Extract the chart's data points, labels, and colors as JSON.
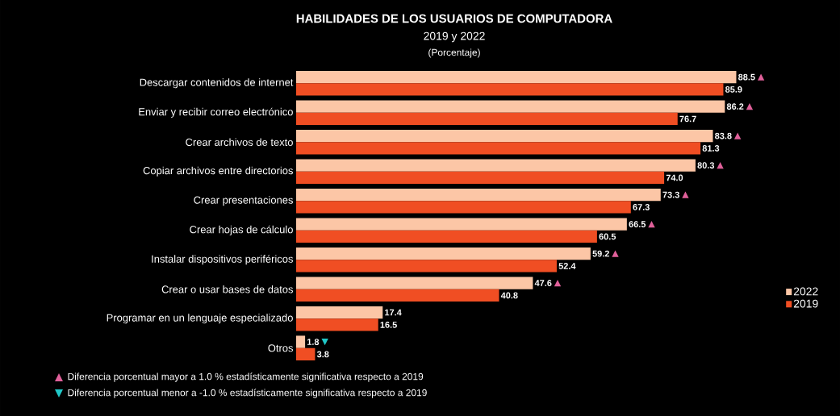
{
  "chart_data": {
    "type": "bar",
    "orientation": "horizontal",
    "title": "HABILIDADES DE LOS USUARIOS DE COMPUTADORA",
    "subtitle": "2019 y 2022",
    "categories": [
      "Descargar contenidos de internet",
      "Enviar y recibir correo electrónico",
      "Crear archivos de texto",
      "Copiar archivos entre directorios",
      "Crear presentaciones",
      "Crear hojas de cálculo",
      "Instalar dispositivos periféricos",
      "Crear o usar bases de datos",
      "Programar en un lenguaje especializado",
      "Otros"
    ],
    "series": [
      {
        "name": "2022",
        "color": "#fcc6a6",
        "values": [
          88.5,
          86.2,
          83.8,
          80.3,
          73.3,
          66.5,
          59.2,
          47.6,
          17.4,
          1.8
        ],
        "value_labels": [
          "88.5",
          "86.2",
          "83.8",
          "80.3",
          "73.3",
          "66.5",
          "59.2",
          "47.6",
          "17.4",
          "1.8"
        ]
      },
      {
        "name": "2019",
        "color": "#f04e23",
        "values": [
          85.9,
          76.7,
          81.3,
          74.0,
          67.3,
          60.5,
          52.4,
          40.8,
          16.5,
          3.8
        ],
        "value_labels": [
          "85.9",
          "76.7",
          "81.3",
          "74.0",
          "67.3",
          "60.5",
          "52.4",
          "40.8",
          "16.5",
          "3.8"
        ]
      }
    ],
    "annotations": [
      "(Porcentaje)",
      "Diferencia porcentual mayor a 1.0 % estadísticamente significativa respecto a 2019",
      "Diferencia porcentual menor a -1.0 % estadísticamente significativa respecto a 2019",
      {
        "text": "▲",
        "x": 88.5,
        "y": "Descargar contenidos de internet"
      },
      {
        "text": "▲",
        "x": 86.2,
        "y": "Enviar y recibir correo electrónico"
      },
      {
        "text": "▲",
        "x": 83.8,
        "y": "Crear archivos de texto"
      },
      {
        "text": "▲",
        "x": 80.3,
        "y": "Copiar archivos entre directorios"
      },
      {
        "text": "▲",
        "x": 73.3,
        "y": "Crear presentaciones"
      },
      {
        "text": "▲",
        "x": 66.5,
        "y": "Crear hojas de cálculo"
      },
      {
        "text": "▲",
        "x": 59.2,
        "y": "Instalar dispositivos periféricos"
      },
      {
        "text": "▲",
        "x": 47.6,
        "y": "Crear o usar bases de datos"
      },
      {
        "text": "▼",
        "x": 1.8,
        "y": "Otros"
      }
    ],
    "legend": "right"
  }
}
